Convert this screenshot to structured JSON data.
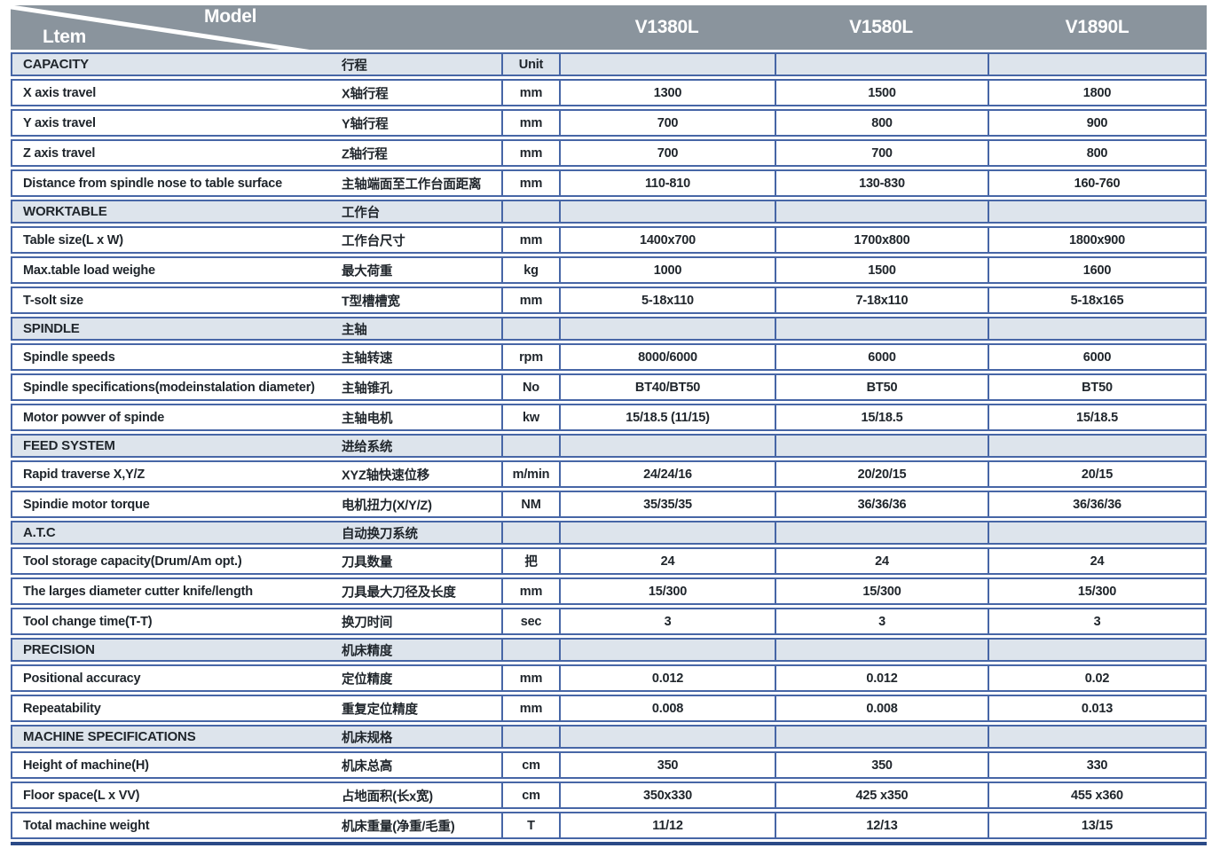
{
  "colors": {
    "header_bg": "#8a949d",
    "section_bg": "#dde4ec",
    "grid_line": "#4766a6",
    "bottom_bar": "#2b4a87",
    "text": "#20262c",
    "header_text": "#ffffff"
  },
  "header": {
    "item_label": "Ltem",
    "model_label": "Model",
    "models": [
      "V1380L",
      "V1580L",
      "V1890L"
    ]
  },
  "table": {
    "sections": [
      {
        "name_en": "CAPACITY",
        "name_cn": "行程",
        "unit_header": "Unit",
        "rows": [
          {
            "en": "X axis travel",
            "cn": "X轴行程",
            "unit": "mm",
            "values": [
              "1300",
              "1500",
              "1800"
            ]
          },
          {
            "en": "Y axis travel",
            "cn": "Y轴行程",
            "unit": "mm",
            "values": [
              "700",
              "800",
              "900"
            ]
          },
          {
            "en": "Z axis travel",
            "cn": "Z轴行程",
            "unit": "mm",
            "values": [
              "700",
              "700",
              "800"
            ]
          },
          {
            "en": "Distance from spindle nose to table surface",
            "cn": "主轴端面至工作台面距离",
            "unit": "mm",
            "values": [
              "110-810",
              "130-830",
              "160-760"
            ]
          }
        ]
      },
      {
        "name_en": "WORKTABLE",
        "name_cn": "工作台",
        "unit_header": "",
        "rows": [
          {
            "en": "Table size(L x W)",
            "cn": "工作台尺寸",
            "unit": "mm",
            "values": [
              "1400x700",
              "1700x800",
              "1800x900"
            ]
          },
          {
            "en": "Max.table load weighe",
            "cn": "最大荷重",
            "unit": "kg",
            "values": [
              "1000",
              "1500",
              "1600"
            ]
          },
          {
            "en": "T-solt size",
            "cn": "T型槽槽宽",
            "unit": "mm",
            "values": [
              "5-18x110",
              "7-18x110",
              "5-18x165"
            ]
          }
        ]
      },
      {
        "name_en": "SPINDLE",
        "name_cn": "主轴",
        "unit_header": "",
        "rows": [
          {
            "en": "Spindle speeds",
            "cn": "主轴转速",
            "unit": "rpm",
            "values": [
              "8000/6000",
              "6000",
              "6000"
            ]
          },
          {
            "en": "Spindle specifications(modeinstalation diameter)",
            "cn": "主轴锥孔",
            "unit": "No",
            "values": [
              "BT40/BT50",
              "BT50",
              "BT50"
            ]
          },
          {
            "en": "Motor powver of spinde",
            "cn": "主轴电机",
            "unit": "kw",
            "values": [
              "15/18.5 (11/15)",
              "15/18.5",
              "15/18.5"
            ]
          }
        ]
      },
      {
        "name_en": "FEED SYSTEM",
        "name_cn": "进给系统",
        "unit_header": "",
        "rows": [
          {
            "en": "Rapid traverse X,Y/Z",
            "cn": "XYZ轴快速位移",
            "unit": "m/min",
            "values": [
              "24/24/16",
              "20/20/15",
              "20/15"
            ]
          },
          {
            "en": "Spindie motor torque",
            "cn": "电机扭力(X/Y/Z)",
            "unit": "NM",
            "values": [
              "35/35/35",
              "36/36/36",
              "36/36/36"
            ]
          }
        ]
      },
      {
        "name_en": "A.T.C",
        "name_cn": "自动换刀系统",
        "unit_header": "",
        "rows": [
          {
            "en": "Tool storage capacity(Drum/Am opt.)",
            "cn": "刀具数量",
            "unit": "把",
            "values": [
              "24",
              "24",
              "24"
            ]
          },
          {
            "en": "The larges diameter cutter knife/length",
            "cn": "刀具最大刀径及长度",
            "unit": "mm",
            "values": [
              "15/300",
              "15/300",
              "15/300"
            ]
          },
          {
            "en": "Tool change time(T-T)",
            "cn": "换刀时间",
            "unit": "sec",
            "values": [
              "3",
              "3",
              "3"
            ]
          }
        ]
      },
      {
        "name_en": "PRECISION",
        "name_cn": "机床精度",
        "unit_header": "",
        "rows": [
          {
            "en": "Positional accuracy",
            "cn": "定位精度",
            "unit": "mm",
            "values": [
              "0.012",
              "0.012",
              "0.02"
            ]
          },
          {
            "en": "Repeatability",
            "cn": "重复定位精度",
            "unit": "mm",
            "values": [
              "0.008",
              "0.008",
              "0.013"
            ]
          }
        ]
      },
      {
        "name_en": "MACHINE SPECIFICATIONS",
        "name_cn": "机床规格",
        "unit_header": "",
        "rows": [
          {
            "en": "Height of machine(H)",
            "cn": "机床总高",
            "unit": "cm",
            "values": [
              "350",
              "350",
              "330"
            ]
          },
          {
            "en": "Floor space(L x VV)",
            "cn": "占地面积(长x宽)",
            "unit": "cm",
            "values": [
              "350x330",
              "425 x350",
              "455 x360"
            ]
          },
          {
            "en": "Total machine weight",
            "cn": "机床重量(净重/毛重)",
            "unit": "T",
            "values": [
              "11/12",
              "12/13",
              "13/15"
            ]
          }
        ]
      }
    ]
  }
}
